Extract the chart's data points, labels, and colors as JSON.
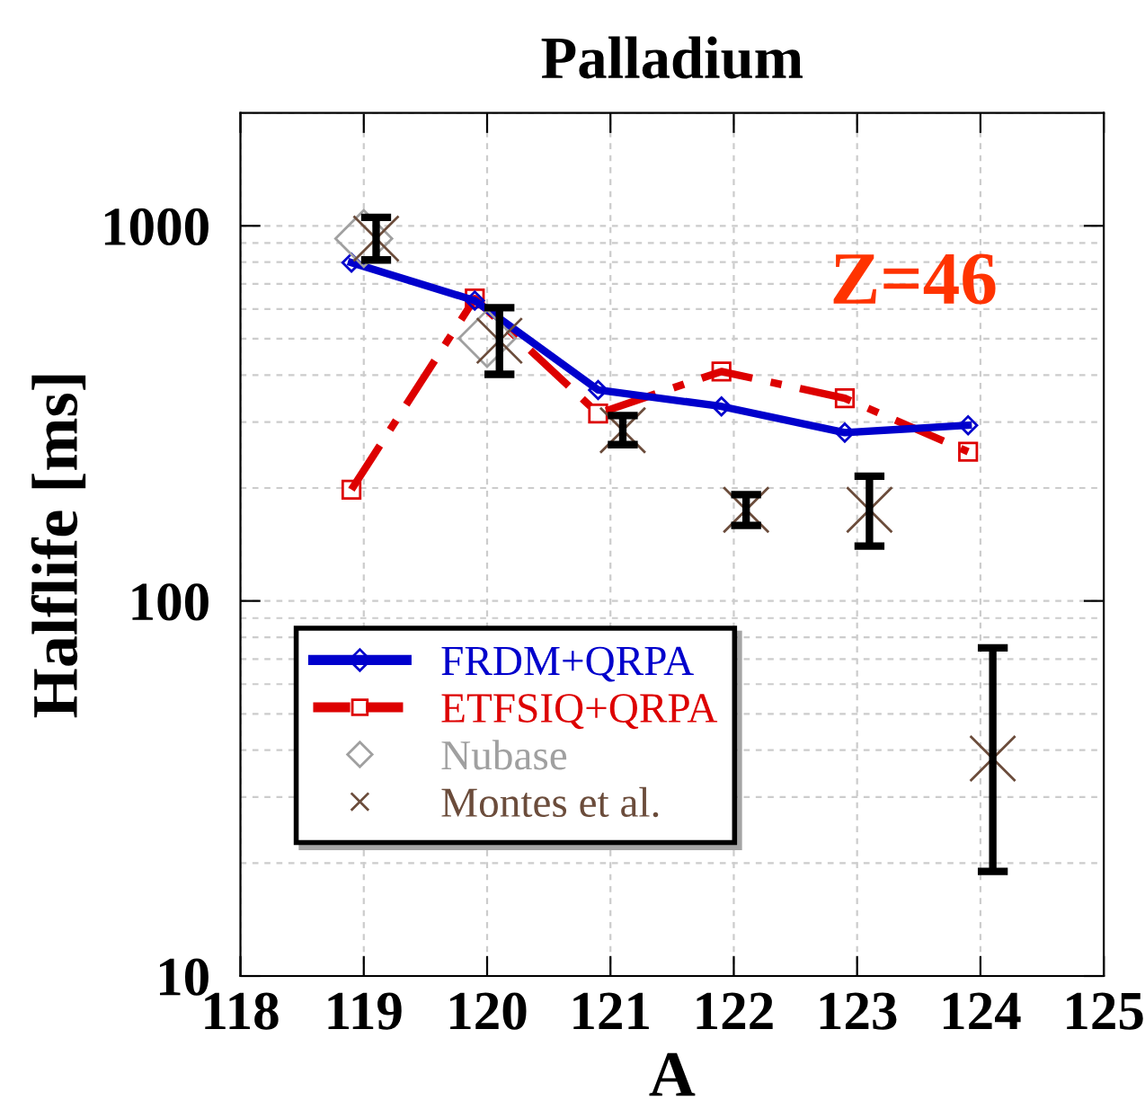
{
  "chart_data": {
    "type": "line",
    "title": "Palladium",
    "xlabel": "A",
    "ylabel": "Halflife [ms]",
    "log": "y",
    "xlim": [
      118,
      125
    ],
    "xticks": [
      118,
      119,
      120,
      121,
      122,
      123,
      124,
      125
    ],
    "ylim": [
      10,
      2000
    ],
    "yticks": [
      10,
      100,
      1000
    ],
    "grid": true,
    "legend": "bottom left",
    "annotations": [
      "Z=46"
    ],
    "series": [
      {
        "name": "FRDM+QRPA",
        "color": "#0000cc",
        "marker": "diamond",
        "line_style": "solid",
        "x": [
          118.9,
          119.9,
          120.9,
          121.9,
          122.9,
          123.9
        ],
        "values": [
          798,
          632,
          365,
          330,
          281,
          294
        ]
      },
      {
        "name": "ETFSIQ+QRPA",
        "color": "#dd0000",
        "marker": "square",
        "line_style": "dashed",
        "x": [
          118.9,
          119.9,
          120.9,
          121.9,
          122.9,
          123.9
        ],
        "values": [
          198,
          640,
          316,
          409,
          347,
          250
        ]
      },
      {
        "name": "Nubase",
        "type": "scatter",
        "color": "#a0a0a0",
        "marker": "diamond",
        "x": [
          119.0,
          120.0
        ],
        "values": [
          925,
          501
        ]
      },
      {
        "name": "Montes et al.",
        "type": "scatter",
        "color": "#6b4c3b",
        "marker": "cross",
        "x": [
          119.1,
          120.1,
          121.1,
          122.1,
          123.1,
          124.1
        ],
        "values": [
          925,
          494,
          285,
          175,
          175,
          38
        ],
        "errors": [
          [
            811,
            1053
          ],
          [
            402,
            605
          ],
          [
            261,
            312
          ],
          [
            159,
            192
          ],
          [
            140,
            215
          ],
          [
            19,
            75
          ]
        ]
      }
    ]
  }
}
